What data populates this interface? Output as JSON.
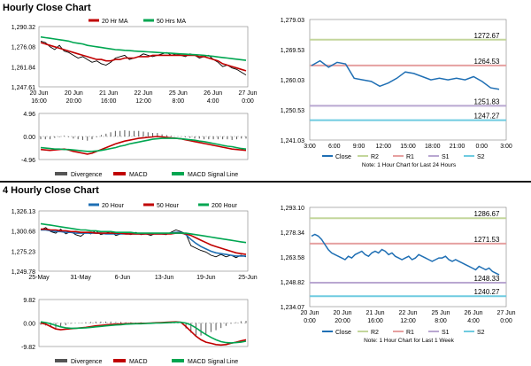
{
  "sections": {
    "hourly_title": "Hourly Close Chart",
    "four_hourly_title": "4 Hourly Close Chart"
  },
  "chart_data": [
    {
      "id": "h_price",
      "type": "line",
      "legend": [
        "20 Hr MA",
        "50 Hrs MA"
      ],
      "legend_colors": [
        "#c00000",
        "#00a651"
      ],
      "yticks": [
        "1,290.32",
        "1,276.08",
        "1,261.84",
        "1,247.61"
      ],
      "ylim": [
        1247.61,
        1290.32
      ],
      "xticks": [
        "20 Jun\n16:00",
        "20 Jun\n20:00",
        "21 Jun\n16:00",
        "22 Jun\n12:00",
        "25 Jun\n8:00",
        "26 Jun\n4:00",
        "27 Jun\n0:00"
      ],
      "series": [
        {
          "name": "Close",
          "color": "#000000",
          "values": [
            1280,
            1279,
            1276,
            1274,
            1277,
            1273,
            1272,
            1270,
            1268,
            1269,
            1267,
            1265,
            1266,
            1264,
            1263,
            1265,
            1268,
            1269,
            1270,
            1267,
            1268,
            1269,
            1271,
            1270,
            1269,
            1270,
            1271,
            1272,
            1270,
            1271,
            1270,
            1269,
            1271,
            1270,
            1268,
            1269,
            1270,
            1267,
            1265,
            1262,
            1263,
            1261,
            1260,
            1258,
            1256
          ]
        },
        {
          "name": "20 Hr MA",
          "color": "#c00000",
          "values": [
            1279,
            1278,
            1277,
            1276,
            1275,
            1274,
            1273,
            1272,
            1271,
            1270,
            1269,
            1268,
            1267,
            1267,
            1266,
            1266,
            1267,
            1267,
            1268,
            1268,
            1268,
            1269,
            1269,
            1269,
            1270,
            1270,
            1270,
            1270,
            1270,
            1270,
            1270,
            1270,
            1270,
            1270,
            1269,
            1269,
            1268,
            1267,
            1266,
            1264,
            1263,
            1262,
            1261,
            1260,
            1259
          ]
        },
        {
          "name": "50 Hrs MA",
          "color": "#00a651",
          "values": [
            1283,
            1282.5,
            1282,
            1281.5,
            1281,
            1280.5,
            1280,
            1279,
            1278.5,
            1278,
            1277,
            1276.5,
            1276,
            1275.5,
            1275,
            1274.5,
            1274,
            1273.8,
            1273.5,
            1273.3,
            1273,
            1272.8,
            1272.6,
            1272.4,
            1272.2,
            1272,
            1271.8,
            1271.6,
            1271.4,
            1271.2,
            1271,
            1270.8,
            1270.6,
            1270.4,
            1270.2,
            1270,
            1269.6,
            1269.2,
            1268.8,
            1268.4,
            1268,
            1267.6,
            1267.2,
            1266.8,
            1266.4
          ]
        }
      ]
    },
    {
      "id": "h_macd",
      "type": "line",
      "legend": [
        "Divergence",
        "MACD",
        "MACD Signal Line"
      ],
      "legend_colors": [
        "#555555",
        "#c00000",
        "#00a651"
      ],
      "yticks": [
        "4.96",
        "0.00",
        "-4.96"
      ],
      "ylim": [
        -4.96,
        4.96
      ],
      "series": [
        {
          "name": "MACD",
          "color": "#c00000",
          "values": [
            -2.8,
            -2.9,
            -3.0,
            -2.9,
            -2.8,
            -2.7,
            -2.9,
            -3.2,
            -3.4,
            -3.6,
            -3.8,
            -3.6,
            -3.2,
            -2.8,
            -2.4,
            -2.0,
            -1.6,
            -1.3,
            -1.0,
            -0.8,
            -0.6,
            -0.4,
            -0.3,
            -0.2,
            -0.1,
            0.0,
            -0.1,
            -0.2,
            -0.3,
            -0.4,
            -0.5,
            -0.7,
            -0.9,
            -1.1,
            -1.3,
            -1.5,
            -1.7,
            -1.9,
            -2.1,
            -2.3,
            -2.5,
            -2.7,
            -2.8,
            -2.9,
            -3.0
          ]
        },
        {
          "name": "MACD Signal Line",
          "color": "#00a651",
          "values": [
            -2.4,
            -2.5,
            -2.6,
            -2.7,
            -2.7,
            -2.8,
            -2.8,
            -2.9,
            -3.0,
            -3.1,
            -3.2,
            -3.2,
            -3.1,
            -3.0,
            -2.8,
            -2.6,
            -2.4,
            -2.1,
            -1.9,
            -1.6,
            -1.4,
            -1.2,
            -1.0,
            -0.8,
            -0.6,
            -0.5,
            -0.4,
            -0.4,
            -0.4,
            -0.4,
            -0.5,
            -0.6,
            -0.7,
            -0.8,
            -1.0,
            -1.1,
            -1.3,
            -1.5,
            -1.7,
            -1.9,
            -2.1,
            -2.2,
            -2.4,
            -2.6,
            -2.7
          ]
        }
      ]
    },
    {
      "id": "h_right",
      "type": "line",
      "yticks": [
        "1,279.03",
        "1,269.53",
        "1,260.03",
        "1,250.53",
        "1,241.03"
      ],
      "ylim": [
        1241.03,
        1279.03
      ],
      "xticks": [
        "3:00",
        "6:00",
        "9:00",
        "12:00",
        "15:00",
        "18:00",
        "21:00",
        "0:00",
        "3:00"
      ],
      "levels": [
        {
          "name": "R2",
          "value": 1272.67,
          "label": "1272.67",
          "color": "#c3d69b"
        },
        {
          "name": "R1",
          "value": 1264.53,
          "label": "1264.53",
          "color": "#e6a0a0"
        },
        {
          "name": "S1",
          "value": 1251.83,
          "label": "1251.83",
          "color": "#b9a7d1"
        },
        {
          "name": "S2",
          "value": 1247.27,
          "label": "1247.27",
          "color": "#6fcbe0"
        }
      ],
      "series": [
        {
          "name": "Close",
          "color": "#1f6fb4",
          "values": [
            1264.5,
            1266.0,
            1264.0,
            1265.5,
            1265.0,
            1260.5,
            1260.0,
            1259.5,
            1258.0,
            1259.0,
            1260.5,
            1262.5,
            1262.0,
            1261.0,
            1260.0,
            1260.5,
            1260.0,
            1260.5,
            1260.0,
            1261.0,
            1259.5,
            1257.5,
            1257.0
          ]
        }
      ],
      "legend": [
        "Close",
        "R2",
        "R1",
        "S1",
        "S2"
      ],
      "note": "Note: 1 Hour Chart for Last 24 Hours"
    },
    {
      "id": "fh_price",
      "type": "line",
      "legend": [
        "20 Hour",
        "50 Hour",
        "200 Hour"
      ],
      "legend_colors": [
        "#1f6fb4",
        "#c00000",
        "#00a651"
      ],
      "yticks": [
        "1,326.13",
        "1,300.68",
        "1,275.23",
        "1,249.78"
      ],
      "ylim": [
        1249.78,
        1326.13
      ],
      "xticks": [
        "25-May",
        "31-May",
        "6-Jun",
        "13-Jun",
        "19-Jun",
        "25-Jun"
      ],
      "series": [
        {
          "name": "Close",
          "color": "#000000",
          "values": [
            1302,
            1305,
            1300,
            1298,
            1303,
            1297,
            1300,
            1296,
            1294,
            1299,
            1297,
            1301,
            1296,
            1298,
            1300,
            1295,
            1297,
            1298,
            1296,
            1299,
            1296,
            1297,
            1295,
            1298,
            1297,
            1296,
            1299,
            1302,
            1300,
            1297,
            1282,
            1279,
            1276,
            1274,
            1270,
            1268,
            1271,
            1268,
            1270,
            1267,
            1270,
            1268
          ]
        },
        {
          "name": "20 Hour",
          "color": "#1f6fb4",
          "values": [
            1302,
            1302,
            1301,
            1300,
            1300,
            1299,
            1299,
            1298,
            1298,
            1298,
            1298,
            1298,
            1298,
            1297,
            1297,
            1297,
            1297,
            1297,
            1297,
            1297,
            1297,
            1297,
            1297,
            1297,
            1297,
            1297,
            1298,
            1299,
            1299,
            1296,
            1290,
            1285,
            1281,
            1278,
            1275,
            1273,
            1272,
            1271,
            1270,
            1269,
            1269,
            1269
          ]
        },
        {
          "name": "50 Hour",
          "color": "#c00000",
          "values": [
            1303,
            1303,
            1302,
            1302,
            1301,
            1301,
            1300,
            1300,
            1299,
            1299,
            1299,
            1298,
            1298,
            1298,
            1298,
            1298,
            1298,
            1297,
            1297,
            1297,
            1297,
            1297,
            1297,
            1297,
            1297,
            1297,
            1297,
            1298,
            1298,
            1297,
            1295,
            1292,
            1289,
            1286,
            1283,
            1281,
            1279,
            1277,
            1275,
            1273,
            1272,
            1271
          ]
        },
        {
          "name": "200 Hour",
          "color": "#00a651",
          "values": [
            1310,
            1309,
            1308,
            1307,
            1306,
            1305,
            1304,
            1303,
            1302,
            1302,
            1301,
            1301,
            1300,
            1300,
            1300,
            1299,
            1299,
            1299,
            1299,
            1298,
            1298,
            1298,
            1298,
            1298,
            1298,
            1298,
            1298,
            1298,
            1298,
            1298,
            1297,
            1296,
            1295,
            1294,
            1293,
            1292,
            1291,
            1290,
            1289,
            1288,
            1287,
            1286
          ]
        }
      ]
    },
    {
      "id": "fh_macd",
      "type": "line",
      "legend": [
        "Divergence",
        "MACD",
        "MACD Signal Line"
      ],
      "legend_colors": [
        "#555555",
        "#c00000",
        "#00a651"
      ],
      "yticks": [
        "9.82",
        "0.00",
        "-9.82"
      ],
      "ylim": [
        -9.82,
        9.82
      ],
      "series": [
        {
          "name": "MACD",
          "color": "#c00000",
          "values": [
            0,
            -0.5,
            -1.5,
            -2.5,
            -2.8,
            -2.6,
            -2.4,
            -2.2,
            -2.0,
            -1.8,
            -1.5,
            -1.2,
            -1.0,
            -0.8,
            -0.6,
            -0.5,
            -0.4,
            -0.3,
            -0.2,
            -0.2,
            -0.1,
            -0.1,
            0.0,
            0.1,
            0.2,
            0.3,
            0.4,
            0.5,
            0.3,
            -1.5,
            -3.5,
            -5.5,
            -7.0,
            -8.0,
            -8.5,
            -9.0,
            -9.2,
            -9.0,
            -8.5,
            -8.0,
            -7.5,
            -7.0
          ]
        },
        {
          "name": "MACD Signal Line",
          "color": "#00a651",
          "values": [
            0.5,
            0.2,
            -0.3,
            -1.0,
            -1.6,
            -2.0,
            -2.2,
            -2.2,
            -2.1,
            -2.0,
            -1.8,
            -1.6,
            -1.4,
            -1.2,
            -1.0,
            -0.8,
            -0.7,
            -0.5,
            -0.4,
            -0.3,
            -0.3,
            -0.2,
            -0.1,
            0.0,
            0.0,
            0.1,
            0.2,
            0.3,
            0.3,
            0.0,
            -0.8,
            -2.0,
            -3.5,
            -4.8,
            -6.0,
            -7.0,
            -7.8,
            -8.2,
            -8.3,
            -8.2,
            -8.0,
            -7.6
          ]
        }
      ]
    },
    {
      "id": "fh_right",
      "type": "line",
      "yticks": [
        "1,293.10",
        "1,278.34",
        "1,263.58",
        "1,248.82",
        "1,234.07"
      ],
      "ylim": [
        1234.07,
        1293.1
      ],
      "xticks": [
        "20 Jun\n0:00",
        "20 Jun\n20:00",
        "21 Jun\n16:00",
        "22 Jun\n12:00",
        "25 Jun\n8:00",
        "26 Jun\n4:00",
        "27 Jun\n0:00"
      ],
      "levels": [
        {
          "name": "R2",
          "value": 1286.67,
          "label": "1286.67",
          "color": "#c3d69b"
        },
        {
          "name": "R1",
          "value": 1271.53,
          "label": "1271.53",
          "color": "#e6a0a0"
        },
        {
          "name": "S1",
          "value": 1248.33,
          "label": "1248.33",
          "color": "#b9a7d1"
        },
        {
          "name": "S2",
          "value": 1240.27,
          "label": "1240.27",
          "color": "#6fcbe0"
        }
      ],
      "series": [
        {
          "name": "Close",
          "color": "#1f6fb4",
          "values": [
            1276,
            1277,
            1276,
            1274,
            1271,
            1268,
            1266,
            1265,
            1264,
            1263,
            1262,
            1264,
            1263,
            1265,
            1266,
            1267,
            1265,
            1264,
            1266,
            1267,
            1266,
            1268,
            1267,
            1265,
            1266,
            1264,
            1263,
            1262,
            1263,
            1264,
            1262,
            1263,
            1265,
            1264,
            1263,
            1262,
            1261,
            1262,
            1263,
            1263,
            1264,
            1262,
            1261,
            1262,
            1261,
            1260,
            1259,
            1258,
            1257,
            1256,
            1258,
            1257,
            1256,
            1257,
            1255,
            1254,
            1253
          ]
        }
      ],
      "legend": [
        "Close",
        "R2",
        "R1",
        "S1",
        "S2"
      ],
      "note": "Note: 1 Hour Chart for Last 1 Week"
    }
  ]
}
